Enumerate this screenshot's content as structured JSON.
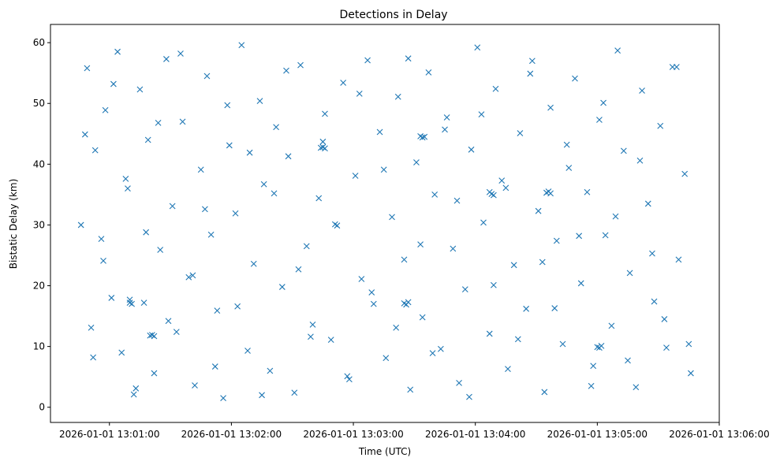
{
  "chart_data": {
    "type": "scatter",
    "title": "Detections in Delay",
    "xlabel": "Time (UTC)",
    "ylabel": "Bistatic Delay (km)",
    "x_is_time": true,
    "xlim": [
      "2026-01-01 13:00:31",
      "2026-01-01 13:06:00"
    ],
    "ylim": [
      -2.5,
      63
    ],
    "xticks": [
      "2026-01-01 13:01:00",
      "2026-01-01 13:02:00",
      "2026-01-01 13:03:00",
      "2026-01-01 13:04:00",
      "2026-01-01 13:05:00",
      "2026-01-01 13:06:00"
    ],
    "yticks": [
      0,
      10,
      20,
      30,
      40,
      50,
      60
    ],
    "grid": false,
    "marker": "x",
    "color": "#1f77b4",
    "series": [
      {
        "x": [
          "13:00:46",
          "13:00:49",
          "13:00:51",
          "13:00:53",
          "13:00:56",
          "13:00:58",
          "13:01:01",
          "13:01:04",
          "13:01:06",
          "13:01:09",
          "13:01:12",
          "13:01:15",
          "13:01:17",
          "13:01:19",
          "13:01:22",
          "13:01:25",
          "13:01:28",
          "13:01:31",
          "13:01:33",
          "13:01:36",
          "13:01:39",
          "13:01:42",
          "13:01:45",
          "13:01:48",
          "13:01:50",
          "13:01:53",
          "13:01:56",
          "13:01:59",
          "13:02:02",
          "13:02:05",
          "13:02:08",
          "13:02:11",
          "13:02:14",
          "13:02:16",
          "13:02:19",
          "13:02:22",
          "13:02:25",
          "13:02:28",
          "13:02:31",
          "13:02:34",
          "13:02:37",
          "13:02:40",
          "13:02:43",
          "13:02:46",
          "13:02:49",
          "13:02:52",
          "13:02:55",
          "13:02:58",
          "13:03:01",
          "13:03:04",
          "13:03:07",
          "13:03:10",
          "13:03:13",
          "13:03:16",
          "13:03:19",
          "13:03:22",
          "13:03:25",
          "13:03:28",
          "13:03:31",
          "13:03:34",
          "13:03:37",
          "13:03:40",
          "13:03:43",
          "13:03:46",
          "13:03:49",
          "13:03:52",
          "13:03:55",
          "13:03:58",
          "13:04:01",
          "13:04:04",
          "13:04:07",
          "13:04:10",
          "13:04:13",
          "13:04:16",
          "13:04:19",
          "13:04:22",
          "13:04:25",
          "13:04:28",
          "13:04:31",
          "13:04:34",
          "13:04:37",
          "13:04:40",
          "13:04:43",
          "13:04:46",
          "13:04:49",
          "13:04:52",
          "13:04:55",
          "13:04:58",
          "13:05:01",
          "13:05:04",
          "13:05:07",
          "13:05:10",
          "13:05:13",
          "13:05:16",
          "13:05:19",
          "13:05:22",
          "13:05:25",
          "13:05:28",
          "13:05:31",
          "13:05:34",
          "13:05:37",
          "13:05:40",
          "13:05:43",
          "13:05:46",
          "13:00:48",
          "13:00:52",
          "13:00:57",
          "13:01:02",
          "13:01:08",
          "13:01:13",
          "13:01:18",
          "13:01:24",
          "13:01:29",
          "13:01:35",
          "13:01:41",
          "13:01:47",
          "13:01:52",
          "13:01:58",
          "13:02:03",
          "13:02:09",
          "13:02:15",
          "13:02:21",
          "13:02:27",
          "13:02:33",
          "13:02:39",
          "13:02:45",
          "13:02:51",
          "13:02:57",
          "13:03:03",
          "13:03:09",
          "13:03:15",
          "13:03:21",
          "13:03:27",
          "13:03:33",
          "13:03:39",
          "13:03:45",
          "13:03:51",
          "13:03:57",
          "13:04:03",
          "13:04:09",
          "13:04:15",
          "13:04:21",
          "13:04:27",
          "13:04:33",
          "13:04:39",
          "13:04:45",
          "13:04:51",
          "13:04:57",
          "13:05:03",
          "13:05:09",
          "13:05:15",
          "13:05:21",
          "13:05:27",
          "13:05:33",
          "13:05:39",
          "13:05:45",
          "13:01:10",
          "13:01:10",
          "13:01:11",
          "13:03:25",
          "13:03:26",
          "13:03:27",
          "13:04:07",
          "13:04:08",
          "13:04:09",
          "13:05:00",
          "13:05:01",
          "13:05:02",
          "13:03:33",
          "13:03:34",
          "13:03:35",
          "13:02:44",
          "13:02:45",
          "13:02:46",
          "13:01:20",
          "13:01:21",
          "13:01:22",
          "13:04:35",
          "13:04:36",
          "13:04:37"
        ],
        "y": [
          30.0,
          55.8,
          13.1,
          42.3,
          27.7,
          48.9,
          18.0,
          58.5,
          9.0,
          36.0,
          2.1,
          52.3,
          17.2,
          44.0,
          5.6,
          25.9,
          57.3,
          33.1,
          12.4,
          47.0,
          21.4,
          3.6,
          39.1,
          54.5,
          28.4,
          15.9,
          1.5,
          43.1,
          31.9,
          59.6,
          9.3,
          23.6,
          50.4,
          36.7,
          6.0,
          46.1,
          19.8,
          41.3,
          2.4,
          56.3,
          26.5,
          13.6,
          34.4,
          48.3,
          11.1,
          29.9,
          53.4,
          4.6,
          38.1,
          21.1,
          57.1,
          17.0,
          45.3,
          8.1,
          31.3,
          51.1,
          24.3,
          2.9,
          40.3,
          14.8,
          55.1,
          35.0,
          9.6,
          47.7,
          26.1,
          4.0,
          19.4,
          42.4,
          59.2,
          30.4,
          12.1,
          52.4,
          37.3,
          6.3,
          23.4,
          45.1,
          16.2,
          57.0,
          32.3,
          2.5,
          49.3,
          27.4,
          10.4,
          39.4,
          54.1,
          20.4,
          35.4,
          6.8,
          47.3,
          28.3,
          13.4,
          58.7,
          42.2,
          22.1,
          3.3,
          52.1,
          33.5,
          17.4,
          46.3,
          9.8,
          56.0,
          24.3,
          38.4,
          5.6,
          44.9,
          8.2,
          24.1,
          53.2,
          37.6,
          3.1,
          28.8,
          46.8,
          14.2,
          58.2,
          21.7,
          32.6,
          6.7,
          49.7,
          16.6,
          41.9,
          2.0,
          35.2,
          55.4,
          22.7,
          11.6,
          43.7,
          30.1,
          5.1,
          51.6,
          18.9,
          39.1,
          13.1,
          57.4,
          26.8,
          8.9,
          45.7,
          34.0,
          1.7,
          48.2,
          20.1,
          36.1,
          11.2,
          54.9,
          23.9,
          16.3,
          43.2,
          28.2,
          3.5,
          50.1,
          31.4,
          7.7,
          40.6,
          25.3,
          14.5,
          56.0,
          10.4,
          17.7,
          17.2,
          17.0,
          17.1,
          16.9,
          17.3,
          35.4,
          35.1,
          34.9,
          9.9,
          9.8,
          10.1,
          44.6,
          44.4,
          44.5,
          42.7,
          42.8,
          42.6,
          11.8,
          11.9,
          11.7,
          35.3,
          35.5,
          35.2
        ]
      }
    ]
  }
}
